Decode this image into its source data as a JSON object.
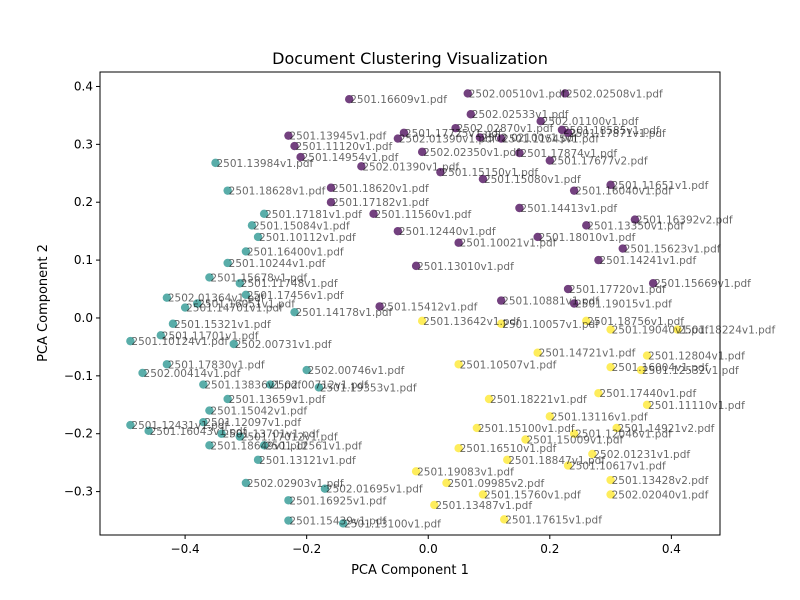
{
  "chart_data": {
    "type": "scatter",
    "title": "Document Clustering Visualization",
    "xlabel": "PCA Component 1",
    "ylabel": "PCA Component 2",
    "xlim": [
      -0.54,
      0.48
    ],
    "ylim": [
      -0.375,
      0.425
    ],
    "xticks": [
      -0.4,
      -0.2,
      0.0,
      0.2,
      0.4
    ],
    "yticks": [
      -0.3,
      -0.2,
      -0.1,
      0.0,
      0.1,
      0.2,
      0.3,
      0.4
    ],
    "grid": false,
    "colormap": "viridis",
    "cluster_colors": {
      "0": "#440154",
      "1": "#21918c",
      "2": "#fde725"
    },
    "series": [
      {
        "cluster": 0,
        "points": [
          {
            "x": -0.13,
            "y": 0.378,
            "label": "2501.16609v1.pdf"
          },
          {
            "x": 0.065,
            "y": 0.388,
            "label": "2502.00510v1.pdf"
          },
          {
            "x": 0.225,
            "y": 0.388,
            "label": "2502.02508v1.pdf"
          },
          {
            "x": 0.07,
            "y": 0.352,
            "label": "2502.02533v1.pdf"
          },
          {
            "x": 0.185,
            "y": 0.34,
            "label": "2502.01100v1.pdf"
          },
          {
            "x": 0.045,
            "y": 0.328,
            "label": "2502.02870v1.pdf"
          },
          {
            "x": 0.22,
            "y": 0.325,
            "label": "2501.18585v1.pdf"
          },
          {
            "x": -0.04,
            "y": 0.32,
            "label": "2501.17725v1.pdf"
          },
          {
            "x": 0.23,
            "y": 0.32,
            "label": "2501.17871v1.pdf"
          },
          {
            "x": -0.23,
            "y": 0.315,
            "label": "2501.13945v1.pdf"
          },
          {
            "x": -0.05,
            "y": 0.31,
            "label": "2502.01390v1.pdf"
          },
          {
            "x": 0.085,
            "y": 0.312,
            "label": "2502.02100v1.pdf"
          },
          {
            "x": 0.12,
            "y": 0.31,
            "label": "2501.11545v1.pdf"
          },
          {
            "x": -0.22,
            "y": 0.297,
            "label": "2501.11120v1.pdf"
          },
          {
            "x": -0.01,
            "y": 0.287,
            "label": "2502.02350v1.pdf"
          },
          {
            "x": 0.15,
            "y": 0.285,
            "label": "2501.17874v1.pdf"
          },
          {
            "x": -0.21,
            "y": 0.278,
            "label": "2501.14954v1.pdf"
          },
          {
            "x": 0.2,
            "y": 0.272,
            "label": "2501.17677v2.pdf"
          },
          {
            "x": -0.11,
            "y": 0.262,
            "label": "2502.01390v1.pdf"
          },
          {
            "x": 0.02,
            "y": 0.252,
            "label": "2501.15150v1.pdf"
          },
          {
            "x": 0.09,
            "y": 0.24,
            "label": "2501.15080v1.pdf"
          },
          {
            "x": 0.3,
            "y": 0.23,
            "label": "2501.11651v1.pdf"
          },
          {
            "x": -0.16,
            "y": 0.225,
            "label": "2501.18620v1.pdf"
          },
          {
            "x": 0.24,
            "y": 0.22,
            "label": "2501.16040v1.pdf"
          },
          {
            "x": -0.16,
            "y": 0.2,
            "label": "2501.17182v1.pdf"
          },
          {
            "x": 0.15,
            "y": 0.19,
            "label": "2501.14413v1.pdf"
          },
          {
            "x": -0.09,
            "y": 0.18,
            "label": "2501.11560v1.pdf"
          },
          {
            "x": 0.34,
            "y": 0.17,
            "label": "2501.16392v2.pdf"
          },
          {
            "x": 0.26,
            "y": 0.16,
            "label": "2501.13350v1.pdf"
          },
          {
            "x": -0.05,
            "y": 0.15,
            "label": "2501.12440v1.pdf"
          },
          {
            "x": 0.18,
            "y": 0.14,
            "label": "2501.18010v1.pdf"
          },
          {
            "x": 0.05,
            "y": 0.13,
            "label": "2501.10021v1.pdf"
          },
          {
            "x": 0.32,
            "y": 0.12,
            "label": "2501.15623v1.pdf"
          },
          {
            "x": 0.28,
            "y": 0.1,
            "label": "2501.14241v1.pdf"
          },
          {
            "x": -0.02,
            "y": 0.09,
            "label": "2501.13010v1.pdf"
          },
          {
            "x": 0.37,
            "y": 0.06,
            "label": "2501.15669v1.pdf"
          },
          {
            "x": 0.23,
            "y": 0.05,
            "label": "2501.17720v1.pdf"
          },
          {
            "x": 0.12,
            "y": 0.03,
            "label": "2501.10881v1.pdf"
          },
          {
            "x": 0.24,
            "y": 0.025,
            "label": "2501.19015v1.pdf"
          },
          {
            "x": -0.08,
            "y": 0.02,
            "label": "2501.15412v1.pdf"
          }
        ]
      },
      {
        "cluster": 1,
        "points": [
          {
            "x": -0.35,
            "y": 0.268,
            "label": "2501.13984v1.pdf"
          },
          {
            "x": -0.33,
            "y": 0.22,
            "label": "2501.18628v1.pdf"
          },
          {
            "x": -0.27,
            "y": 0.18,
            "label": "2501.17181v1.pdf"
          },
          {
            "x": -0.29,
            "y": 0.16,
            "label": "2501.15084v1.pdf"
          },
          {
            "x": -0.28,
            "y": 0.14,
            "label": "2501.10112v1.pdf"
          },
          {
            "x": -0.3,
            "y": 0.115,
            "label": "2501.16400v1.pdf"
          },
          {
            "x": -0.33,
            "y": 0.095,
            "label": "2501.10244v1.pdf"
          },
          {
            "x": -0.36,
            "y": 0.07,
            "label": "2501.15678v1.pdf"
          },
          {
            "x": -0.31,
            "y": 0.06,
            "label": "2501.11748v1.pdf"
          },
          {
            "x": -0.43,
            "y": 0.035,
            "label": "2502.01364v1.pdf"
          },
          {
            "x": -0.38,
            "y": 0.025,
            "label": "2501.16051v1.pdf"
          },
          {
            "x": -0.4,
            "y": 0.018,
            "label": "2501.14701v1.pdf"
          },
          {
            "x": -0.3,
            "y": 0.04,
            "label": "2501.17456v1.pdf"
          },
          {
            "x": -0.42,
            "y": -0.01,
            "label": "2501.15321v1.pdf"
          },
          {
            "x": -0.44,
            "y": -0.03,
            "label": "2501.11701v1.pdf"
          },
          {
            "x": -0.49,
            "y": -0.04,
            "label": "2501.10124v1.pdf"
          },
          {
            "x": -0.32,
            "y": -0.045,
            "label": "2502.00731v1.pdf"
          },
          {
            "x": -0.43,
            "y": -0.08,
            "label": "2501.17830v1.pdf"
          },
          {
            "x": -0.47,
            "y": -0.095,
            "label": "2502.00414v1.pdf"
          },
          {
            "x": -0.37,
            "y": -0.115,
            "label": "2501.13836v1.pdf"
          },
          {
            "x": -0.26,
            "y": -0.115,
            "label": "2502.00712v1.pdf"
          },
          {
            "x": -0.33,
            "y": -0.14,
            "label": "2501.13659v1.pdf"
          },
          {
            "x": -0.36,
            "y": -0.16,
            "label": "2501.15042v1.pdf"
          },
          {
            "x": -0.37,
            "y": -0.18,
            "label": "2501.12097v1.pdf"
          },
          {
            "x": -0.49,
            "y": -0.185,
            "label": "2501.12431v1.pdf"
          },
          {
            "x": -0.46,
            "y": -0.195,
            "label": "2501.16043v1.pdf"
          },
          {
            "x": -0.34,
            "y": -0.2,
            "label": "2501.13701v1.pdf"
          },
          {
            "x": -0.31,
            "y": -0.205,
            "label": "2501.17012v1.pdf"
          },
          {
            "x": -0.36,
            "y": -0.22,
            "label": "2501.18649v1.pdf"
          },
          {
            "x": -0.27,
            "y": -0.22,
            "label": "2501.12561v1.pdf"
          },
          {
            "x": -0.28,
            "y": -0.245,
            "label": "2501.13121v1.pdf"
          },
          {
            "x": -0.3,
            "y": -0.285,
            "label": "2502.02903v1.pdf"
          },
          {
            "x": -0.17,
            "y": -0.295,
            "label": "2502.01695v1.pdf"
          },
          {
            "x": -0.23,
            "y": -0.315,
            "label": "2501.16925v1.pdf"
          },
          {
            "x": -0.23,
            "y": -0.35,
            "label": "2501.15439v1.pdf"
          },
          {
            "x": -0.14,
            "y": -0.355,
            "label": "2501.13100v1.pdf"
          },
          {
            "x": -0.18,
            "y": -0.12,
            "label": "2501.19353v1.pdf"
          },
          {
            "x": -0.2,
            "y": -0.09,
            "label": "2502.00746v1.pdf"
          },
          {
            "x": -0.22,
            "y": 0.01,
            "label": "2501.14178v1.pdf"
          }
        ]
      },
      {
        "cluster": 2,
        "points": [
          {
            "x": 0.125,
            "y": -0.348,
            "label": "2501.17615v1.pdf"
          },
          {
            "x": 0.01,
            "y": -0.323,
            "label": "2501.13487v1.pdf"
          },
          {
            "x": 0.09,
            "y": -0.305,
            "label": "2501.15760v1.pdf"
          },
          {
            "x": 0.3,
            "y": -0.305,
            "label": "2502.02040v1.pdf"
          },
          {
            "x": 0.03,
            "y": -0.285,
            "label": "2501.09985v2.pdf"
          },
          {
            "x": 0.3,
            "y": -0.28,
            "label": "2501.13428v2.pdf"
          },
          {
            "x": -0.02,
            "y": -0.265,
            "label": "2501.19083v1.pdf"
          },
          {
            "x": 0.23,
            "y": -0.255,
            "label": "2501.10617v1.pdf"
          },
          {
            "x": 0.13,
            "y": -0.245,
            "label": "2501.18847v1.pdf"
          },
          {
            "x": 0.27,
            "y": -0.235,
            "label": "2502.01231v1.pdf"
          },
          {
            "x": 0.05,
            "y": -0.225,
            "label": "2501.16510v1.pdf"
          },
          {
            "x": 0.16,
            "y": -0.21,
            "label": "2501.15009v1.pdf"
          },
          {
            "x": 0.24,
            "y": -0.2,
            "label": "2501.12046v1.pdf"
          },
          {
            "x": 0.08,
            "y": -0.19,
            "label": "2501.15100v1.pdf"
          },
          {
            "x": 0.31,
            "y": -0.19,
            "label": "2501.14921v2.pdf"
          },
          {
            "x": 0.2,
            "y": -0.17,
            "label": "2501.13116v1.pdf"
          },
          {
            "x": 0.36,
            "y": -0.15,
            "label": "2501.11110v1.pdf"
          },
          {
            "x": 0.1,
            "y": -0.14,
            "label": "2501.18221v1.pdf"
          },
          {
            "x": 0.28,
            "y": -0.13,
            "label": "2501.17440v1.pdf"
          },
          {
            "x": 0.35,
            "y": -0.09,
            "label": "2501.12532v1.pdf"
          },
          {
            "x": 0.3,
            "y": -0.085,
            "label": "2501.16004v1.pdf"
          },
          {
            "x": 0.05,
            "y": -0.08,
            "label": "2501.10507v1.pdf"
          },
          {
            "x": 0.36,
            "y": -0.065,
            "label": "2501.12804v1.pdf"
          },
          {
            "x": 0.18,
            "y": -0.06,
            "label": "2501.14721v1.pdf"
          },
          {
            "x": 0.41,
            "y": -0.02,
            "label": "2501.18224v1.pdf"
          },
          {
            "x": 0.3,
            "y": -0.02,
            "label": "2501.19040v1.pdf"
          },
          {
            "x": 0.12,
            "y": -0.01,
            "label": "2501.10057v1.pdf"
          },
          {
            "x": 0.26,
            "y": -0.005,
            "label": "2501.18756v1.pdf"
          },
          {
            "x": -0.01,
            "y": -0.005,
            "label": "2501.13642v1.pdf"
          }
        ]
      }
    ]
  }
}
